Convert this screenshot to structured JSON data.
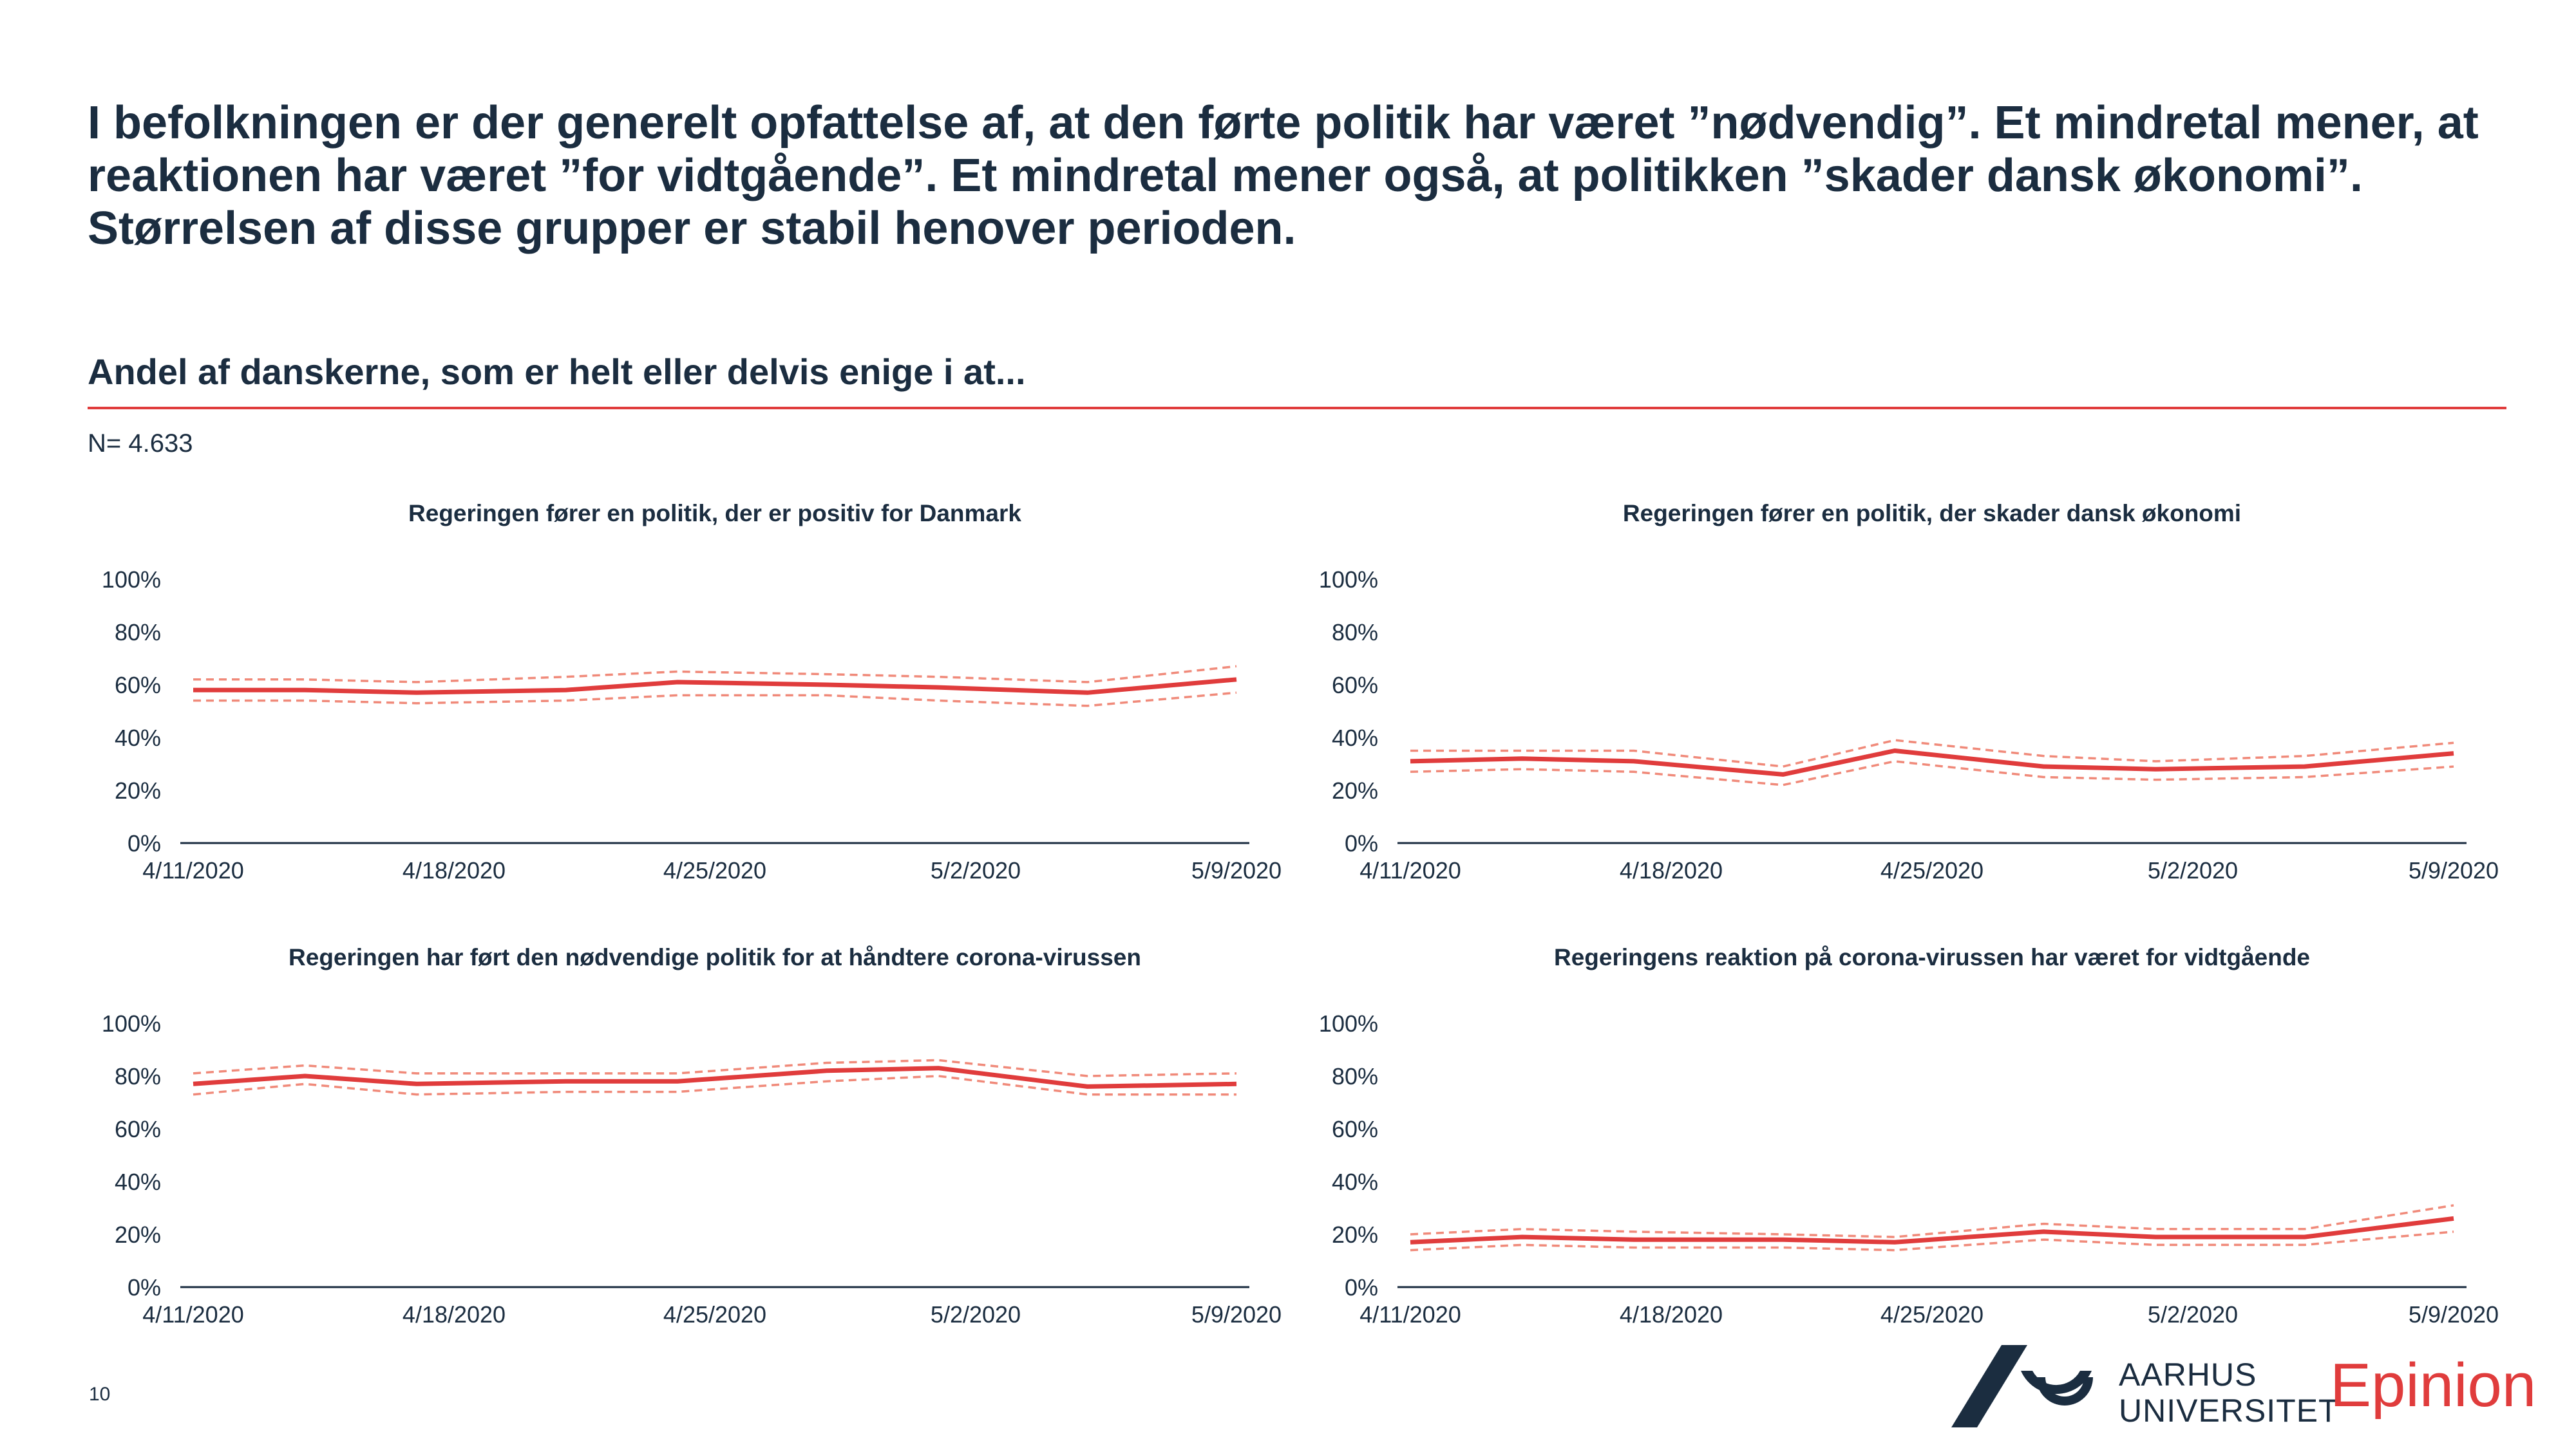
{
  "headline": "I befolkningen er der generelt opfattelse af, at den førte politik har været ”nødvendig”. Et mindretal mener, at reaktionen har været ”for vidtgående”. Et mindretal mener også, at politikken ”skader dansk økonomi”. Størrelsen af disse grupper er stabil henover perioden.",
  "subtitle": "Andel af danskerne, som er helt eller delvis enige i at...",
  "n_label": "N= 4.633",
  "page_number": "10",
  "logo": {
    "line1": "AARHUS",
    "line2": "UNIVERSITET",
    "brand": "Epinion"
  },
  "colors": {
    "accent": "#e03c3c",
    "text": "#1b2d40",
    "ci_line": "#f08a7a"
  },
  "chart_data": [
    {
      "type": "line",
      "title": "Regeringen fører en politik, der er positiv for Danmark",
      "x": [
        "4/11/2020",
        "4/14/2020",
        "4/17/2020",
        "4/21/2020",
        "4/24/2020",
        "4/28/2020",
        "5/1/2020",
        "5/5/2020",
        "5/9/2020"
      ],
      "x_tick_labels": [
        "4/11/2020",
        "4/18/2020",
        "4/25/2020",
        "5/2/2020",
        "5/9/2020"
      ],
      "ylim": [
        0,
        100
      ],
      "y_tick_labels": [
        "0%",
        "20%",
        "40%",
        "60%",
        "80%",
        "100%"
      ],
      "series": [
        {
          "role": "estimate",
          "values": [
            58,
            58,
            57,
            58,
            61,
            60,
            59,
            57,
            62
          ]
        },
        {
          "role": "upper",
          "values": [
            62,
            62,
            61,
            63,
            65,
            64,
            63,
            61,
            67
          ]
        },
        {
          "role": "lower",
          "values": [
            54,
            54,
            53,
            54,
            56,
            56,
            54,
            52,
            57
          ]
        }
      ]
    },
    {
      "type": "line",
      "title": "Regeringen fører en politik, der skader dansk økonomi",
      "x": [
        "4/11/2020",
        "4/14/2020",
        "4/17/2020",
        "4/21/2020",
        "4/24/2020",
        "4/28/2020",
        "5/1/2020",
        "5/5/2020",
        "5/9/2020"
      ],
      "x_tick_labels": [
        "4/11/2020",
        "4/18/2020",
        "4/25/2020",
        "5/2/2020",
        "5/9/2020"
      ],
      "ylim": [
        0,
        100
      ],
      "y_tick_labels": [
        "0%",
        "20%",
        "40%",
        "60%",
        "80%",
        "100%"
      ],
      "series": [
        {
          "role": "estimate",
          "values": [
            31,
            32,
            31,
            26,
            35,
            29,
            28,
            29,
            34
          ]
        },
        {
          "role": "upper",
          "values": [
            35,
            35,
            35,
            29,
            39,
            33,
            31,
            33,
            38
          ]
        },
        {
          "role": "lower",
          "values": [
            27,
            28,
            27,
            22,
            31,
            25,
            24,
            25,
            29
          ]
        }
      ]
    },
    {
      "type": "line",
      "title": "Regeringen har ført den nødvendige politik for at håndtere corona-virussen",
      "x": [
        "4/11/2020",
        "4/14/2020",
        "4/17/2020",
        "4/21/2020",
        "4/24/2020",
        "4/28/2020",
        "5/1/2020",
        "5/5/2020",
        "5/9/2020"
      ],
      "x_tick_labels": [
        "4/11/2020",
        "4/18/2020",
        "4/25/2020",
        "5/2/2020",
        "5/9/2020"
      ],
      "ylim": [
        0,
        100
      ],
      "y_tick_labels": [
        "0%",
        "20%",
        "40%",
        "60%",
        "80%",
        "100%"
      ],
      "series": [
        {
          "role": "estimate",
          "values": [
            77,
            80,
            77,
            78,
            78,
            82,
            83,
            76,
            77
          ]
        },
        {
          "role": "upper",
          "values": [
            81,
            84,
            81,
            81,
            81,
            85,
            86,
            80,
            81
          ]
        },
        {
          "role": "lower",
          "values": [
            73,
            77,
            73,
            74,
            74,
            78,
            80,
            73,
            73
          ]
        }
      ]
    },
    {
      "type": "line",
      "title": "Regeringens reaktion på corona-virussen har været for vidtgående",
      "x": [
        "4/11/2020",
        "4/14/2020",
        "4/17/2020",
        "4/21/2020",
        "4/24/2020",
        "4/28/2020",
        "5/1/2020",
        "5/5/2020",
        "5/9/2020"
      ],
      "x_tick_labels": [
        "4/11/2020",
        "4/18/2020",
        "4/25/2020",
        "5/2/2020",
        "5/9/2020"
      ],
      "ylim": [
        0,
        100
      ],
      "y_tick_labels": [
        "0%",
        "20%",
        "40%",
        "60%",
        "80%",
        "100%"
      ],
      "series": [
        {
          "role": "estimate",
          "values": [
            17,
            19,
            18,
            18,
            17,
            21,
            19,
            19,
            26
          ]
        },
        {
          "role": "upper",
          "values": [
            20,
            22,
            21,
            20,
            19,
            24,
            22,
            22,
            31
          ]
        },
        {
          "role": "lower",
          "values": [
            14,
            16,
            15,
            15,
            14,
            18,
            16,
            16,
            21
          ]
        }
      ]
    }
  ]
}
